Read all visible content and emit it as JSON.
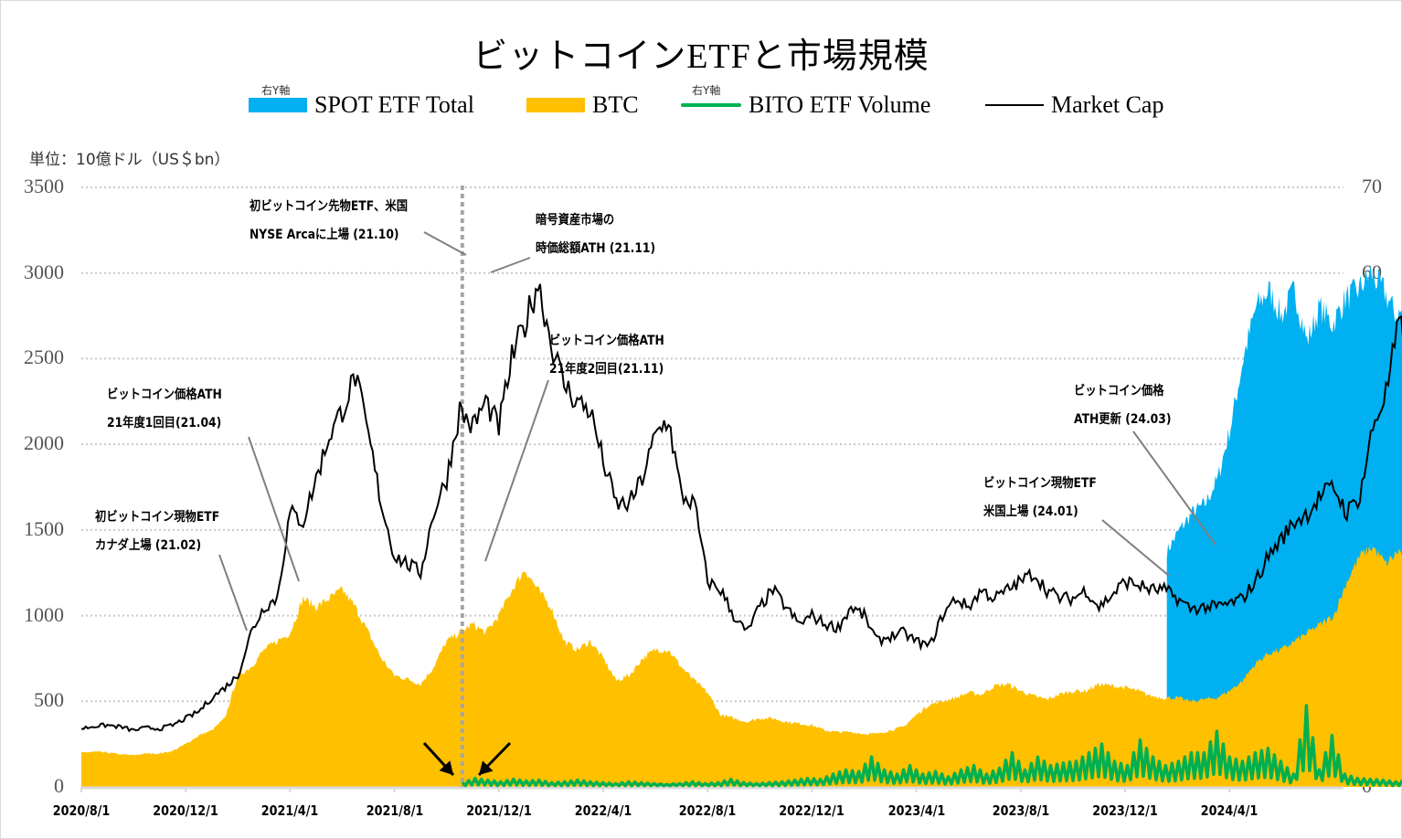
{
  "chart_data": {
    "type": "area",
    "title": "ビットコインETFと市場規模",
    "unit_label": "単位：10億ドル（US＄bn）",
    "xlabel": "",
    "ylabel_left": "",
    "ylabel_right": "",
    "ylim_left": [
      0,
      3500
    ],
    "ylim_right": [
      0,
      70
    ],
    "yticks_left": [
      "0",
      "500",
      "1000",
      "1500",
      "2000",
      "2500",
      "3000",
      "3500"
    ],
    "yticks_right": [
      "0",
      "10",
      "20",
      "30",
      "40",
      "50",
      "60",
      "70"
    ],
    "xticks": [
      "2020/8/1",
      "2020/12/1",
      "2021/4/1",
      "2021/8/1",
      "2021/12/1",
      "2022/4/1",
      "2022/8/1",
      "2022/12/1",
      "2023/4/1",
      "2023/8/1",
      "2023/12/1",
      "2024/4/1"
    ],
    "grid": "horizontal-dotted",
    "legend_position": "top",
    "legend": [
      {
        "name": "SPOT ETF Total",
        "axis_tag": "右Y軸",
        "color": "#00b0f0",
        "kind": "area",
        "axis": "right"
      },
      {
        "name": "BTC",
        "axis_tag": "",
        "color": "#ffc000",
        "kind": "area",
        "axis": "left"
      },
      {
        "name": "BITO ETF Volume",
        "axis_tag": "右Y軸",
        "color": "#00b050",
        "kind": "line",
        "axis": "right"
      },
      {
        "name": "Market Cap",
        "axis_tag": "",
        "color": "#000000",
        "kind": "line",
        "axis": "left"
      }
    ],
    "x_months": [
      0,
      0.5,
      1,
      1.5,
      2,
      2.5,
      3,
      3.5,
      4,
      4.5,
      5,
      5.5,
      6,
      6.5,
      7,
      7.5,
      8,
      8.5,
      9,
      9.5,
      10,
      10.5,
      11,
      11.5,
      12,
      12.5,
      13,
      13.5,
      14,
      14.5,
      15,
      15.5,
      16,
      16.5,
      17,
      17.5,
      18,
      18.5,
      19,
      19.5,
      20,
      20.5,
      21,
      21.5,
      22,
      22.5,
      23,
      23.5,
      24,
      24.5,
      25,
      25.5,
      26,
      26.5,
      27,
      27.5,
      28,
      28.5,
      29,
      29.5,
      30,
      30.5,
      31,
      31.5,
      32,
      32.5,
      33,
      33.5,
      34,
      34.5,
      35,
      35.5,
      36,
      36.5,
      37,
      37.5,
      38,
      38.5,
      39,
      39.5,
      40,
      40.5,
      41,
      41.5,
      42,
      42.5,
      43,
      43.5,
      44,
      44.5,
      45,
      45.5,
      46,
      46.5,
      47,
      47.5,
      48,
      48.5,
      49,
      49.5,
      50,
      50.5,
      51,
      51.5,
      52,
      52.5,
      53,
      53.5,
      54,
      54.3
    ],
    "x_origin": "2020/8/1",
    "series": [
      {
        "name": "Market Cap",
        "axis": "left",
        "values": [
          340,
          355,
          360,
          350,
          330,
          345,
          340,
          360,
          400,
          440,
          520,
          580,
          650,
          900,
          1050,
          1100,
          1600,
          1550,
          1800,
          2050,
          2200,
          2400,
          2050,
          1650,
          1350,
          1300,
          1250,
          1600,
          1800,
          2200,
          2100,
          2250,
          2100,
          2500,
          2700,
          2950,
          2600,
          2350,
          2250,
          2200,
          1900,
          1650,
          1650,
          1800,
          2050,
          2150,
          1700,
          1650,
          1200,
          1150,
          1000,
          900,
          1050,
          1150,
          1050,
          950,
          1000,
          950,
          930,
          1050,
          1000,
          850,
          880,
          900,
          850,
          820,
          1000,
          1100,
          1050,
          1150,
          1100,
          1150,
          1200,
          1250,
          1150,
          1100,
          1100,
          1150,
          1050,
          1120,
          1200,
          1180,
          1150,
          1150,
          1100,
          1040,
          1050,
          1050,
          1070,
          1100,
          1200,
          1350,
          1450,
          1550,
          1600,
          1700,
          1750,
          1600,
          1700,
          2100,
          2300,
          2700,
          2500,
          2550,
          2300,
          2500,
          2300,
          2500,
          2450,
          2200,
          2250,
          2100,
          2350,
          2350
        ]
      },
      {
        "name": "BTC",
        "axis": "left",
        "values": [
          200,
          205,
          200,
          190,
          185,
          195,
          195,
          210,
          250,
          300,
          330,
          400,
          650,
          700,
          800,
          850,
          900,
          1100,
          1050,
          1100,
          1150,
          1050,
          900,
          750,
          650,
          630,
          600,
          700,
          850,
          900,
          950,
          900,
          1000,
          1150,
          1270,
          1150,
          1050,
          850,
          800,
          850,
          750,
          620,
          650,
          750,
          800,
          800,
          700,
          620,
          550,
          420,
          400,
          380,
          400,
          400,
          380,
          370,
          360,
          330,
          320,
          320,
          310,
          310,
          330,
          350,
          420,
          480,
          500,
          520,
          550,
          540,
          590,
          600,
          560,
          530,
          510,
          540,
          560,
          560,
          600,
          590,
          580,
          560,
          530,
          520,
          520,
          500,
          510,
          520,
          560,
          620,
          720,
          780,
          800,
          850,
          900,
          950,
          1000,
          1200,
          1350,
          1400,
          1300,
          1380,
          1250,
          1250,
          1300,
          1320,
          1380,
          1350,
          1200,
          1100,
          1250,
          1300
        ]
      },
      {
        "name": "SPOT ETF Total",
        "axis": "right",
        "start_month": 41.6,
        "values": [
          27.5,
          30,
          32,
          33,
          36,
          42,
          50,
          56,
          58,
          55,
          58,
          52,
          56,
          54,
          57,
          58,
          60,
          58,
          55,
          56,
          57,
          55,
          50,
          50,
          52,
          60,
          61
        ]
      },
      {
        "name": "BITO ETF Volume",
        "axis": "right",
        "start_month": 14.6,
        "values": [
          0.5,
          1.0,
          0.8,
          0.6,
          0.9,
          0.7,
          0.8,
          0.5,
          0.6,
          0.8,
          0.6,
          0.5,
          0.4,
          0.6,
          0.5,
          0.4,
          0.3,
          0.4,
          0.6,
          0.4,
          0.5,
          0.9,
          0.5,
          0.4,
          0.5,
          0.6,
          0.8,
          1.0,
          0.9,
          1.5,
          2.0,
          1.8,
          3.5,
          2.0,
          1.5,
          2.5,
          1.5,
          1.8,
          1.2,
          2.0,
          2.5,
          1.5,
          2.2,
          4.0,
          2.0,
          3.5,
          2.5,
          2.8,
          3.0,
          4.0,
          5.0,
          3.0,
          2.5,
          5.5,
          3.5,
          2.5,
          3.0,
          4.0,
          4.0,
          6.5,
          3.5,
          3.0,
          4.0,
          4.5,
          3.0,
          1.5,
          9.5,
          2.0,
          6.0,
          1.5,
          1.0,
          0.9,
          0.8,
          0.6,
          0.8,
          0.5,
          0.6,
          0.7,
          0.6,
          0.5,
          0.6,
          0.4
        ]
      }
    ],
    "event_marker": {
      "date": "2021/10",
      "style": "dotted-vertical"
    },
    "annotations": [
      {
        "line1": "初ビットコイン現物ETF",
        "line2": "カナダ上場 (21.02)"
      },
      {
        "line1": "ビットコイン価格ATH",
        "line2": "21年度1回目(21.04)"
      },
      {
        "line1": "初ビットコイン先物ETF、米国",
        "line2": "NYSE Arcaに上場 (21.10)"
      },
      {
        "line1": "暗号資産市場の",
        "line2": "時価総額ATH (21.11)"
      },
      {
        "line1": "ビットコイン価格ATH",
        "line2": "21年度2回目(21.11)"
      },
      {
        "line1": "ビットコイン現物ETF",
        "line2": "米国上場 (24.01)"
      },
      {
        "line1": "ビットコイン価格",
        "line2": "ATH更新 (24.03)"
      }
    ]
  }
}
